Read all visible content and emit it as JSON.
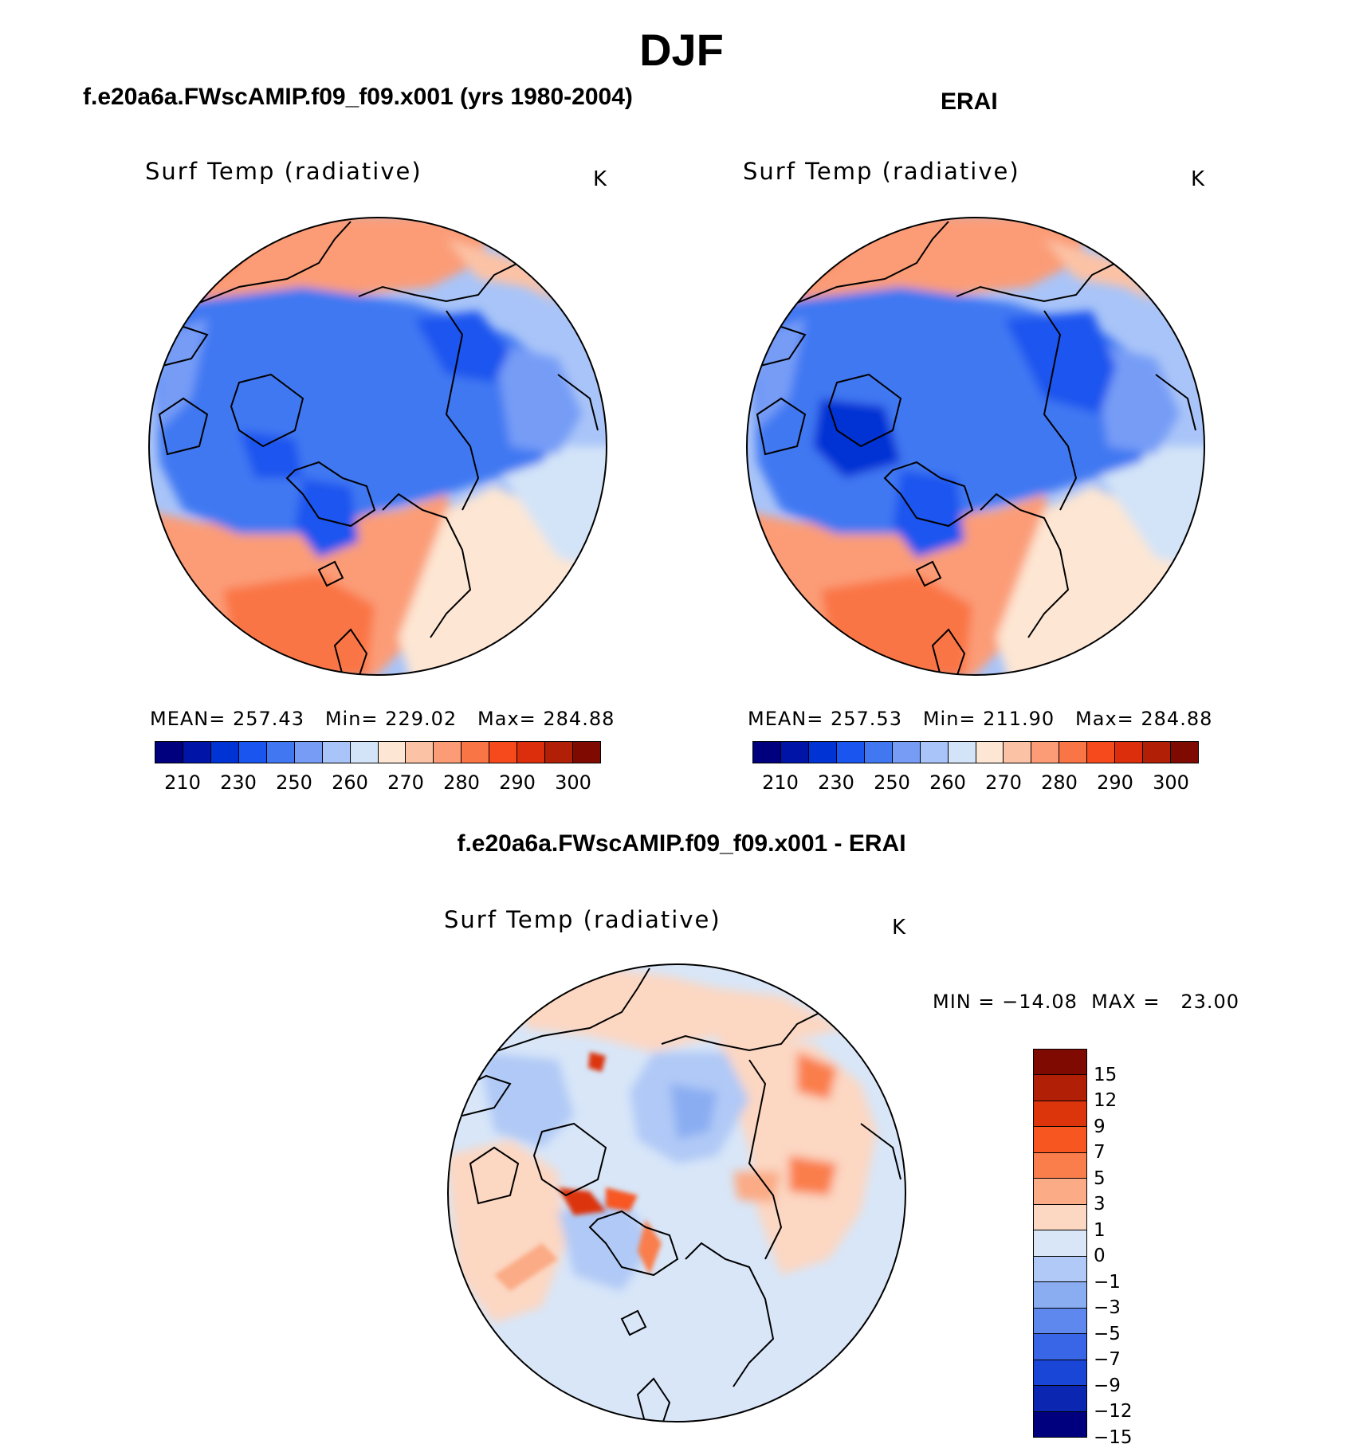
{
  "figure": {
    "season": "DJF",
    "model_title": "f.e20a6a.FWscAMIP.f09_f09.x001 (yrs 1980-2004)",
    "obs_title": "ERAI",
    "diff_title": "f.e20a6a.FWscAMIP.f09_f09.x001 - ERAI"
  },
  "panels": {
    "model": {
      "variable": "Surf Temp (radiative)",
      "units": "K",
      "stats": "MEAN= 257.43   Min= 229.02   Max= 284.88"
    },
    "obs": {
      "variable": "Surf Temp (radiative)",
      "units": "K",
      "stats": "MEAN= 257.53   Min= 211.90   Max= 284.88"
    },
    "diff": {
      "variable": "Surf Temp (radiative)",
      "units": "K",
      "stats": "MIN = −14.08  MAX =   23.00"
    }
  },
  "colorbars": {
    "abs": {
      "colors": [
        "#00007f",
        "#0014a8",
        "#0033d4",
        "#1a55ef",
        "#4178f2",
        "#769cf6",
        "#a9c4f8",
        "#d3e4f8",
        "#fde6d3",
        "#fcc2a5",
        "#fb9c77",
        "#fa7545",
        "#f64a1c",
        "#dc2d0c",
        "#b01f06",
        "#7e0a02"
      ],
      "labels": [
        "210",
        "230",
        "250",
        "260",
        "270",
        "280",
        "290",
        "300"
      ]
    },
    "diff": {
      "colors": [
        "#7e0a02",
        "#b01f06",
        "#dc350c",
        "#f85620",
        "#fa7e4c",
        "#fbab85",
        "#fcd7c2",
        "#d8e6f8",
        "#b0c9f6",
        "#8aadf2",
        "#5f88ee",
        "#3866e6",
        "#1a46d8",
        "#0b26b0",
        "#00007f"
      ],
      "labels": [
        "15",
        "12",
        "9",
        "7",
        "5",
        "3",
        "1",
        "0",
        "−1",
        "−3",
        "−5",
        "−7",
        "−9",
        "−12",
        "−15"
      ]
    }
  }
}
